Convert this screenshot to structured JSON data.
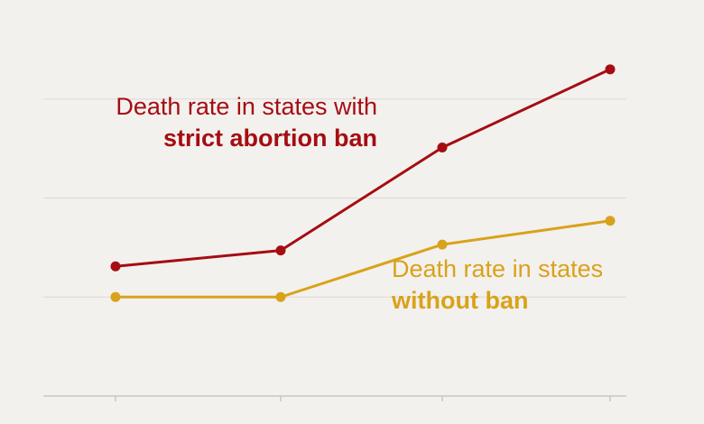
{
  "colors": {
    "background": "#f3f1ee",
    "grid": "#dcdad6",
    "axis": "#c9c7c3",
    "strict_ban": "#a50d12",
    "without_ban": "#d9a21b"
  },
  "labels": {
    "strict_line1": "Death rate in states with",
    "strict_line2": "strict abortion ban",
    "without_line1": "Death rate in states",
    "without_line2": "without ban"
  },
  "chart_data": {
    "type": "line",
    "x": [
      0,
      1,
      2,
      3
    ],
    "ylim": [
      0,
      4
    ],
    "grid": true,
    "grid_lines": [
      1,
      2,
      3
    ],
    "series": [
      {
        "name": "Death rate in states with strict abortion ban",
        "color": "#a50d12",
        "values": [
          1.31,
          1.47,
          2.51,
          3.3
        ]
      },
      {
        "name": "Death rate in states without ban",
        "color": "#d9a21b",
        "values": [
          1.0,
          1.0,
          1.53,
          1.77
        ]
      }
    ]
  }
}
